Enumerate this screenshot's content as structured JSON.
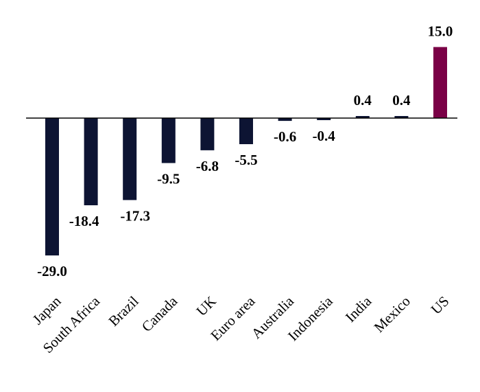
{
  "chart_data": {
    "type": "bar",
    "title": "",
    "xlabel": "",
    "ylabel": "",
    "categories": [
      "Japan",
      "South Africa",
      "Brazil",
      "Canada",
      "UK",
      "Euro area",
      "Australia",
      "Indonesia",
      "India",
      "Mexico",
      "US"
    ],
    "values": [
      -29.0,
      -18.4,
      -17.3,
      -9.5,
      -6.8,
      -5.5,
      -0.6,
      -0.4,
      0.4,
      0.4,
      15.0
    ],
    "data_labels": [
      "-29.0",
      "-18.4",
      "-17.3",
      "-9.5",
      "-6.8",
      "-5.5",
      "-0.6",
      "-0.4",
      "0.4",
      "0.4",
      "15.0"
    ],
    "colors": {
      "default": "#0d1433",
      "highlight": "#7a0046"
    },
    "highlight_category": "US",
    "ylim": [
      -31,
      16
    ],
    "grid": false,
    "legend": "none",
    "zero_line": true
  }
}
